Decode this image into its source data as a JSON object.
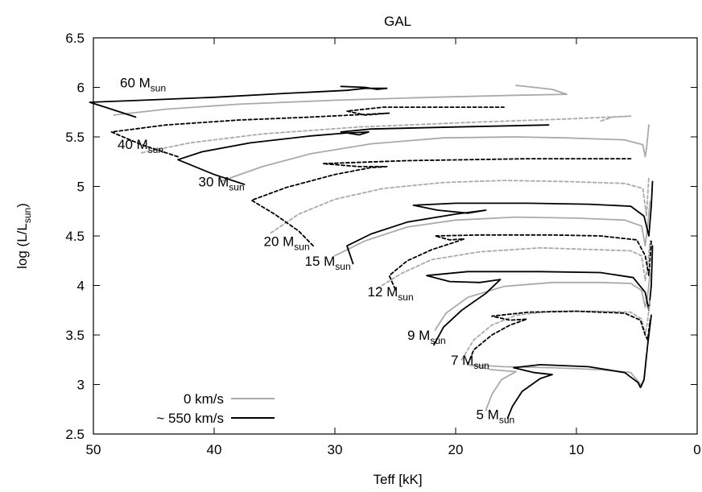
{
  "chart_data": {
    "type": "line",
    "title": "GAL",
    "xlabel": "Teff [kK]",
    "ylabel_main": "log (L/L",
    "ylabel_sub": "sun",
    "ylabel_end": ")",
    "xlim": [
      50,
      0
    ],
    "ylim": [
      2.5,
      6.5
    ],
    "x_reversed": true,
    "xticks": [
      50,
      40,
      30,
      20,
      10,
      0
    ],
    "yticks": [
      2.5,
      3,
      3.5,
      4,
      4.5,
      5,
      5.5,
      6,
      6.5
    ],
    "grid": false,
    "legend_placement": "bottom-left",
    "colors": {
      "slow": "#aaaaaa",
      "fast": "#000000"
    },
    "legend": [
      {
        "label": "0 km/s",
        "color": "#aaaaaa"
      },
      {
        "label": "~ 550 km/s",
        "color": "#000000"
      }
    ],
    "mass_labels": [
      {
        "main": "60 M",
        "sub": "sun",
        "x": 47.8,
        "y": 6.0
      },
      {
        "main": "40 M",
        "sub": "sun",
        "x": 48.0,
        "y": 5.38
      },
      {
        "main": "30 M",
        "sub": "sun",
        "x": 41.3,
        "y": 5.0
      },
      {
        "main": "20 M",
        "sub": "sun",
        "x": 35.9,
        "y": 4.4
      },
      {
        "main": "15 M",
        "sub": "sun",
        "x": 32.5,
        "y": 4.2
      },
      {
        "main": "12 M",
        "sub": "sun",
        "x": 27.3,
        "y": 3.89
      },
      {
        "main": "9 M",
        "sub": "sun",
        "x": 24.0,
        "y": 3.45
      },
      {
        "main": "7 M",
        "sub": "sun",
        "x": 20.4,
        "y": 3.2
      },
      {
        "main": "5 M",
        "sub": "sun",
        "x": 18.3,
        "y": 2.65
      }
    ],
    "series": [
      {
        "mass": "60",
        "rotation": "0 km/s",
        "style": "solid",
        "color": "#aaaaaa",
        "points": [
          [
            48.3,
            5.72
          ],
          [
            44,
            5.78
          ],
          [
            38,
            5.83
          ],
          [
            30,
            5.87
          ],
          [
            22,
            5.9
          ],
          [
            15,
            5.92
          ],
          [
            10.8,
            5.93
          ],
          [
            12,
            5.98
          ],
          [
            15,
            6.02
          ]
        ]
      },
      {
        "mass": "60",
        "rotation": "~ 550 km/s",
        "style": "solid",
        "color": "#000000",
        "points": [
          [
            46.5,
            5.7
          ],
          [
            48.5,
            5.78
          ],
          [
            50.3,
            5.85
          ],
          [
            46,
            5.87
          ],
          [
            40,
            5.9
          ],
          [
            34,
            5.94
          ],
          [
            29,
            5.97
          ],
          [
            27.5,
            5.99
          ],
          [
            25.7,
            5.99
          ],
          [
            26.5,
            5.98
          ],
          [
            27.5,
            6.0
          ],
          [
            29.5,
            6.01
          ]
        ]
      },
      {
        "mass": "40",
        "rotation": "0 km/s",
        "style": "dashed",
        "color": "#aaaaaa",
        "points": [
          [
            46,
            5.34
          ],
          [
            42,
            5.44
          ],
          [
            36,
            5.53
          ],
          [
            28,
            5.6
          ],
          [
            18,
            5.65
          ],
          [
            11,
            5.68
          ],
          [
            5.5,
            5.71
          ],
          [
            7,
            5.7
          ],
          [
            8,
            5.66
          ]
        ]
      },
      {
        "mass": "40",
        "rotation": "~ 550 km/s",
        "style": "dashed",
        "color": "#000000",
        "points": [
          [
            43,
            5.3
          ],
          [
            46,
            5.42
          ],
          [
            48.5,
            5.55
          ],
          [
            44,
            5.62
          ],
          [
            38,
            5.67
          ],
          [
            32,
            5.7
          ],
          [
            27,
            5.73
          ],
          [
            25.5,
            5.74
          ],
          [
            27.5,
            5.72
          ],
          [
            29,
            5.76
          ],
          [
            26,
            5.8
          ],
          [
            23,
            5.8
          ],
          [
            16,
            5.8
          ]
        ]
      },
      {
        "mass": "30",
        "rotation": "0 km/s",
        "style": "solid",
        "color": "#aaaaaa",
        "points": [
          [
            39.5,
            5.05
          ],
          [
            36,
            5.2
          ],
          [
            32,
            5.33
          ],
          [
            27,
            5.43
          ],
          [
            21,
            5.49
          ],
          [
            15,
            5.5
          ],
          [
            11,
            5.49
          ],
          [
            6,
            5.47
          ],
          [
            4.5,
            5.42
          ],
          [
            4.3,
            5.3
          ],
          [
            4.2,
            5.38
          ],
          [
            4,
            5.62
          ]
        ]
      },
      {
        "mass": "30",
        "rotation": "~ 550 km/s",
        "style": "solid",
        "color": "#000000",
        "points": [
          [
            37.5,
            5.02
          ],
          [
            40,
            5.12
          ],
          [
            43,
            5.27
          ],
          [
            41,
            5.35
          ],
          [
            37,
            5.44
          ],
          [
            32,
            5.51
          ],
          [
            29,
            5.54
          ],
          [
            27.2,
            5.55
          ],
          [
            28,
            5.52
          ],
          [
            29.5,
            5.55
          ],
          [
            27,
            5.58
          ],
          [
            20,
            5.6
          ],
          [
            12.3,
            5.62
          ]
        ]
      },
      {
        "mass": "20",
        "rotation": "0 km/s",
        "style": "dashed",
        "color": "#aaaaaa",
        "points": [
          [
            35.3,
            4.53
          ],
          [
            33,
            4.72
          ],
          [
            30,
            4.87
          ],
          [
            26,
            4.98
          ],
          [
            21,
            5.04
          ],
          [
            16,
            5.06
          ],
          [
            11,
            5.05
          ],
          [
            6,
            5.03
          ],
          [
            4.5,
            4.98
          ],
          [
            4.2,
            4.7
          ],
          [
            4.1,
            4.9
          ],
          [
            4,
            5.1
          ]
        ]
      },
      {
        "mass": "20",
        "rotation": "~ 550 km/s",
        "style": "dashed",
        "color": "#000000",
        "points": [
          [
            31.8,
            4.4
          ],
          [
            33,
            4.55
          ],
          [
            35,
            4.72
          ],
          [
            36.9,
            4.86
          ],
          [
            34,
            4.99
          ],
          [
            30,
            5.12
          ],
          [
            27,
            5.19
          ],
          [
            25.7,
            5.2
          ],
          [
            28,
            5.2
          ],
          [
            31,
            5.23
          ],
          [
            24,
            5.26
          ],
          [
            14,
            5.28
          ],
          [
            5.5,
            5.28
          ]
        ]
      },
      {
        "mass": "15",
        "rotation": "0 km/s",
        "style": "solid",
        "color": "#aaaaaa",
        "points": [
          [
            30,
            4.3
          ],
          [
            27.5,
            4.45
          ],
          [
            24,
            4.59
          ],
          [
            20,
            4.66
          ],
          [
            15,
            4.69
          ],
          [
            10,
            4.68
          ],
          [
            6,
            4.66
          ],
          [
            4.6,
            4.6
          ],
          [
            4.3,
            4.4
          ],
          [
            4.1,
            4.6
          ],
          [
            3.9,
            4.85
          ]
        ]
      },
      {
        "mass": "15",
        "rotation": "~ 550 km/s",
        "style": "solid",
        "color": "#000000",
        "points": [
          [
            28.5,
            4.22
          ],
          [
            29,
            4.4
          ],
          [
            27,
            4.52
          ],
          [
            24,
            4.64
          ],
          [
            20,
            4.72
          ],
          [
            17.5,
            4.76
          ],
          [
            19,
            4.73
          ],
          [
            21.5,
            4.76
          ],
          [
            23.5,
            4.81
          ],
          [
            20,
            4.83
          ],
          [
            14,
            4.83
          ],
          [
            9,
            4.82
          ],
          [
            5.5,
            4.8
          ],
          [
            4.4,
            4.7
          ],
          [
            4,
            4.5
          ],
          [
            3.8,
            4.8
          ],
          [
            3.7,
            5.05
          ]
        ]
      },
      {
        "mass": "12",
        "rotation": "0 km/s",
        "style": "dashed",
        "color": "#aaaaaa",
        "points": [
          [
            26.5,
            3.97
          ],
          [
            24.5,
            4.12
          ],
          [
            22,
            4.26
          ],
          [
            18,
            4.34
          ],
          [
            13,
            4.38
          ],
          [
            8,
            4.36
          ],
          [
            5.5,
            4.35
          ],
          [
            4.6,
            4.3
          ],
          [
            4.3,
            4.05
          ],
          [
            4.1,
            4.2
          ],
          [
            3.9,
            4.45
          ]
        ]
      },
      {
        "mass": "12",
        "rotation": "~ 550 km/s",
        "style": "dashed",
        "color": "#000000",
        "points": [
          [
            25,
            3.96
          ],
          [
            25.5,
            4.1
          ],
          [
            24,
            4.25
          ],
          [
            22,
            4.36
          ],
          [
            20,
            4.44
          ],
          [
            19.3,
            4.47
          ],
          [
            20.5,
            4.46
          ],
          [
            21.7,
            4.5
          ],
          [
            18,
            4.51
          ],
          [
            12,
            4.51
          ],
          [
            8,
            4.5
          ],
          [
            5,
            4.46
          ],
          [
            4.3,
            4.3
          ],
          [
            4,
            4.1
          ],
          [
            3.8,
            4.45
          ]
        ]
      },
      {
        "mass": "9",
        "rotation": "0 km/s",
        "style": "solid",
        "color": "#aaaaaa",
        "points": [
          [
            21.7,
            3.55
          ],
          [
            20.8,
            3.72
          ],
          [
            19,
            3.88
          ],
          [
            16,
            3.99
          ],
          [
            12,
            4.03
          ],
          [
            8,
            4.03
          ],
          [
            5.5,
            4.02
          ],
          [
            4.6,
            3.95
          ],
          [
            4.3,
            3.78
          ],
          [
            4.1,
            3.9
          ],
          [
            3.9,
            4.12
          ]
        ]
      },
      {
        "mass": "9",
        "rotation": "~ 550 km/s",
        "style": "solid",
        "color": "#000000",
        "points": [
          [
            21.8,
            3.4
          ],
          [
            21,
            3.58
          ],
          [
            19.5,
            3.75
          ],
          [
            17.5,
            3.92
          ],
          [
            16.3,
            4.06
          ],
          [
            18,
            4.03
          ],
          [
            20.5,
            4.04
          ],
          [
            22.4,
            4.1
          ],
          [
            19,
            4.14
          ],
          [
            13,
            4.14
          ],
          [
            8,
            4.13
          ],
          [
            5.3,
            4.08
          ],
          [
            4.3,
            3.93
          ],
          [
            4,
            3.75
          ],
          [
            3.8,
            4.0
          ],
          [
            3.7,
            4.4
          ]
        ]
      },
      {
        "mass": "7",
        "rotation": "0 km/s",
        "style": "dashed",
        "color": "#aaaaaa",
        "points": [
          [
            19.5,
            3.25
          ],
          [
            18.5,
            3.45
          ],
          [
            17,
            3.6
          ],
          [
            15,
            3.7
          ],
          [
            12,
            3.74
          ],
          [
            8,
            3.74
          ],
          [
            5.5,
            3.73
          ],
          [
            4.6,
            3.66
          ],
          [
            4.3,
            3.5
          ],
          [
            4.1,
            3.65
          ],
          [
            3.9,
            3.85
          ]
        ]
      },
      {
        "mass": "7",
        "rotation": "~ 550 km/s",
        "style": "dashed",
        "color": "#000000",
        "points": [
          [
            19,
            3.2
          ],
          [
            18.5,
            3.35
          ],
          [
            17,
            3.5
          ],
          [
            15.5,
            3.6
          ],
          [
            14.1,
            3.66
          ],
          [
            15.5,
            3.65
          ],
          [
            17,
            3.69
          ],
          [
            14,
            3.73
          ],
          [
            10,
            3.74
          ],
          [
            6,
            3.72
          ],
          [
            4.7,
            3.65
          ],
          [
            4.3,
            3.5
          ],
          [
            4.1,
            3.45
          ],
          [
            3.9,
            3.65
          ]
        ]
      },
      {
        "mass": "5",
        "rotation": "0 km/s",
        "style": "solid",
        "color": "#aaaaaa",
        "points": [
          [
            17.5,
            2.74
          ],
          [
            17,
            2.9
          ],
          [
            16.2,
            3.05
          ],
          [
            15,
            3.13
          ],
          [
            17,
            3.15
          ],
          [
            19,
            3.2
          ],
          [
            16,
            3.18
          ],
          [
            12,
            3.17
          ],
          [
            8,
            3.15
          ],
          [
            5.5,
            3.12
          ],
          [
            4.8,
            3.02
          ],
          [
            4.6,
            2.98
          ],
          [
            4.4,
            3.05
          ],
          [
            4.2,
            3.3
          ]
        ]
      },
      {
        "mass": "5",
        "rotation": "~ 550 km/s",
        "style": "solid",
        "color": "#000000",
        "points": [
          [
            15.7,
            2.66
          ],
          [
            15.3,
            2.78
          ],
          [
            14.5,
            2.93
          ],
          [
            13,
            3.06
          ],
          [
            12,
            3.1
          ],
          [
            13.5,
            3.12
          ],
          [
            15.2,
            3.17
          ],
          [
            13,
            3.2
          ],
          [
            9,
            3.18
          ],
          [
            6,
            3.12
          ],
          [
            4.9,
            3.02
          ],
          [
            4.7,
            2.97
          ],
          [
            4.4,
            3.05
          ],
          [
            4.1,
            3.4
          ],
          [
            3.8,
            3.7
          ]
        ]
      }
    ]
  }
}
